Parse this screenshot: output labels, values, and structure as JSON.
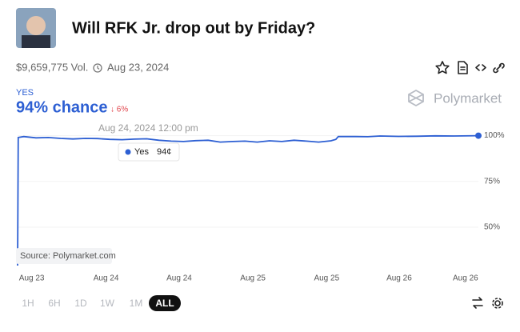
{
  "header": {
    "title": "Will RFK Jr. drop out by Friday?",
    "volume": "$9,659,775 Vol.",
    "date": "Aug 23, 2024"
  },
  "outcome": {
    "label": "YES",
    "chance": "94% chance",
    "change": "↓ 6%"
  },
  "brand": "Polymarket",
  "chart_data": {
    "type": "line",
    "x": [
      0,
      0.1,
      1,
      3,
      5,
      7,
      9,
      11,
      13,
      15,
      17,
      19,
      21,
      23,
      25,
      27,
      29,
      31,
      33,
      35,
      37,
      39,
      41,
      43,
      45,
      47,
      49,
      51,
      51.8,
      52.2,
      55,
      57,
      59,
      62,
      65,
      68,
      71,
      75
    ],
    "series": [
      {
        "name": "Yes",
        "color": "#2d5fd3",
        "values": [
          29,
          99,
          99.5,
          98.8,
          99,
          98.5,
          98.2,
          98.5,
          98.4,
          98,
          97.8,
          98.1,
          98.3,
          97.5,
          97,
          96.8,
          97.3,
          97.5,
          96.5,
          96.8,
          97,
          96.5,
          97.2,
          96.8,
          97.5,
          97,
          96.5,
          97.2,
          98,
          99.5,
          99.5,
          99.4,
          99.8,
          99.6,
          99.7,
          99.9,
          99.8,
          100
        ]
      }
    ],
    "xlim": [
      0,
      75
    ],
    "xticks": [
      {
        "value": 2.3,
        "label": "Aug 23"
      },
      {
        "value": 14.4,
        "label": "Aug 24"
      },
      {
        "value": 26.3,
        "label": "Aug 24"
      },
      {
        "value": 38.3,
        "label": "Aug 25"
      },
      {
        "value": 50.3,
        "label": "Aug 25"
      },
      {
        "value": 62.1,
        "label": "Aug 26"
      },
      {
        "value": 72.9,
        "label": "Aug 26"
      }
    ],
    "ylim": [
      29,
      102
    ],
    "yticks": [
      {
        "value": 50,
        "label": "50%"
      },
      {
        "value": 75,
        "label": "75%"
      },
      {
        "value": 100,
        "label": "100%"
      }
    ],
    "tooltip": {
      "date": "Aug 24, 2024 12:00 pm",
      "label": "94¢"
    },
    "source": "Source: Polymarket.com"
  },
  "range_buttons": [
    "1H",
    "6H",
    "1D",
    "1W",
    "1M",
    "ALL"
  ],
  "selected_range": "ALL"
}
